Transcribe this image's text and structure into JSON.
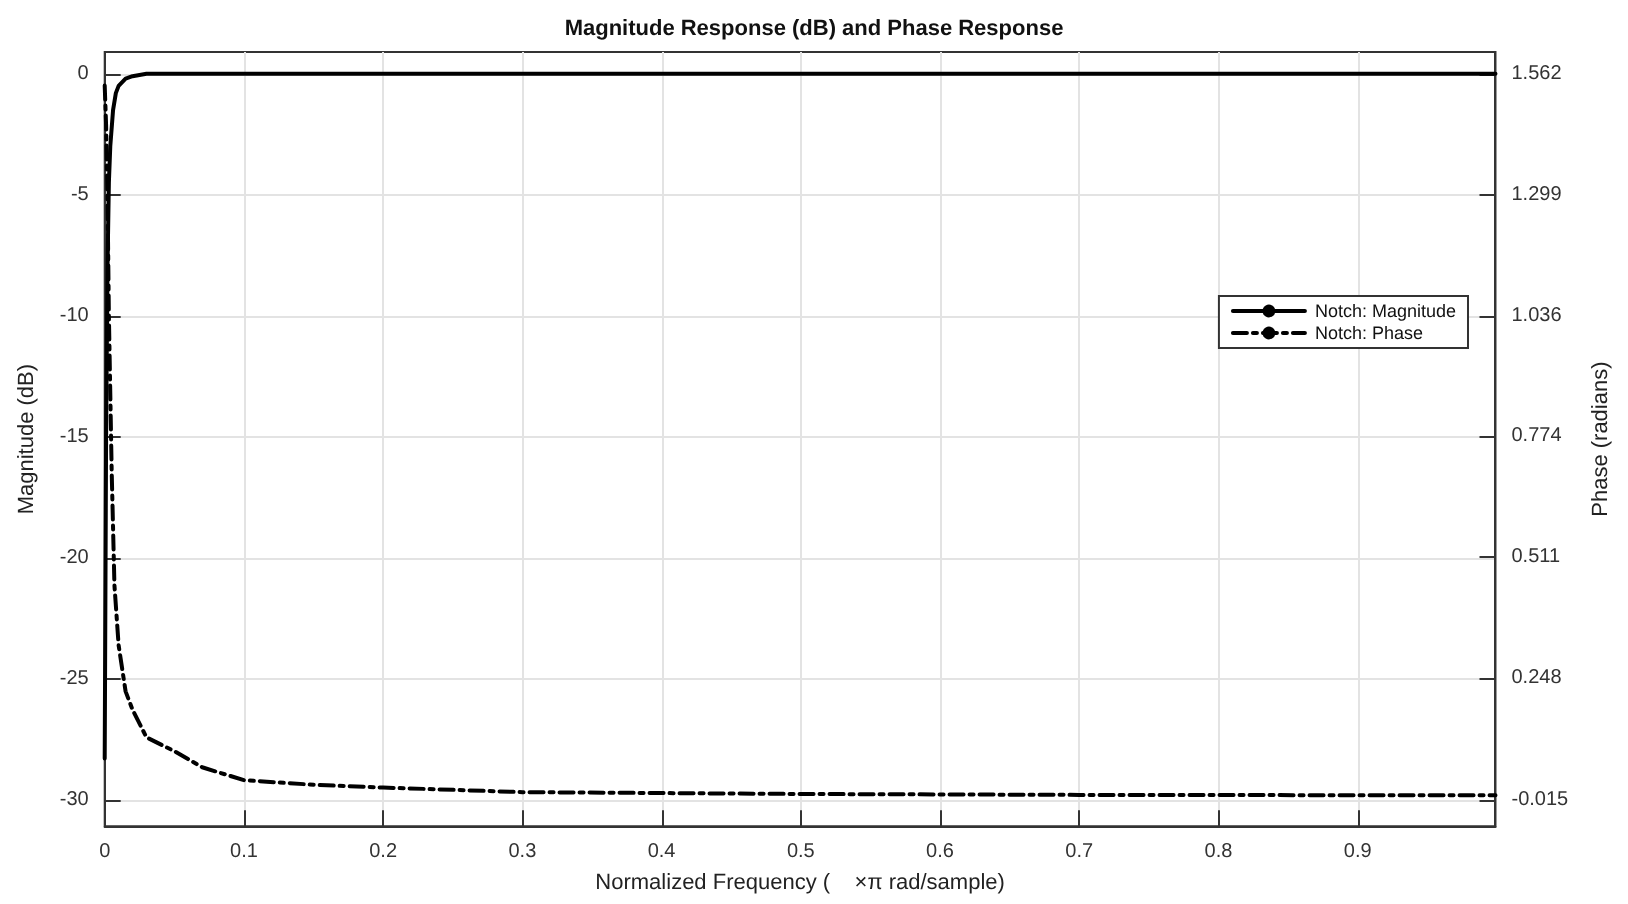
{
  "chart_data": {
    "type": "line",
    "title": "Magnitude Response (dB) and Phase Response",
    "xlabel": "Normalized Frequency (    ×π rad/sample)",
    "ylabel": "Magnitude (dB)",
    "y2label": "Phase (radians)",
    "xlim": [
      0,
      0.999
    ],
    "xticks": [
      0,
      0.1,
      0.2,
      0.3,
      0.4,
      0.5,
      0.6,
      0.7,
      0.8,
      0.9
    ],
    "ylim": [
      -31.1,
      0.9
    ],
    "yticks": [
      -30,
      -25,
      -20,
      -15,
      -10,
      -5,
      0
    ],
    "y2lim": [
      -0.073,
      1.609
    ],
    "y2ticks": [
      {
        "value": -0.015,
        "label": "-0.015"
      },
      {
        "value": 0.248,
        "label": "0.248"
      },
      {
        "value": 0.511,
        "label": "0.511"
      },
      {
        "value": 0.774,
        "label": "0.774"
      },
      {
        "value": 1.036,
        "label": "1.036"
      },
      {
        "value": 1.299,
        "label": "1.299"
      },
      {
        "value": 1.562,
        "label": "1.562"
      }
    ],
    "grid": true,
    "legend": "right",
    "marker": "none",
    "series": [
      {
        "name": "Notch: Magnitude",
        "color": "#000000",
        "line_style": "solid",
        "x": [
          0,
          0.001,
          0.002,
          0.003,
          0.004,
          0.006,
          0.008,
          0.01,
          0.015,
          0.02,
          0.03,
          0.05,
          0.999
        ],
        "values": [
          -28.3,
          -15,
          -8,
          -4.5,
          -3,
          -1.5,
          -0.8,
          -0.5,
          -0.2,
          -0.1,
          0,
          0,
          0
        ]
      },
      {
        "name": "Notch: Phase",
        "color": "#000000",
        "line_style": "dashed",
        "axis": "y2",
        "x": [
          0,
          0.001,
          0.002,
          0.003,
          0.005,
          0.007,
          0.01,
          0.015,
          0.02,
          0.03,
          0.05,
          0.07,
          0.1,
          0.15,
          0.2,
          0.3,
          0.5,
          0.7,
          0.999
        ],
        "values": [
          1.536,
          1.45,
          1.3,
          1.036,
          0.7,
          0.45,
          0.32,
          0.22,
          0.18,
          0.12,
          0.09,
          0.055,
          0.027,
          0.017,
          0.011,
          0.001,
          -0.003,
          -0.005,
          -0.006
        ]
      }
    ]
  }
}
